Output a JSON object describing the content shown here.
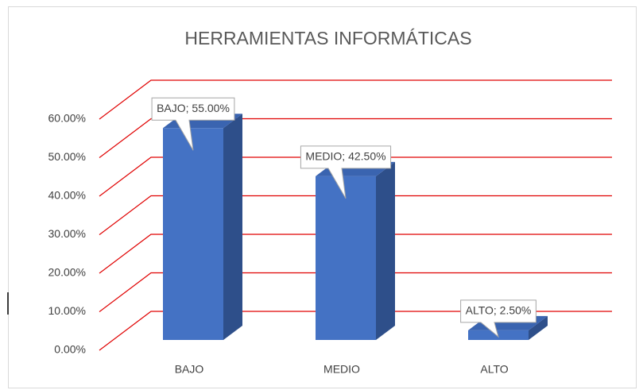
{
  "chart_data": {
    "type": "bar3d",
    "title": "HERRAMIENTAS INFORMÁTICAS",
    "categories": [
      "BAJO",
      "MEDIO",
      "ALTO"
    ],
    "values": [
      55,
      42.5,
      2.5
    ],
    "value_labels": [
      "BAJO; 55.00%",
      "MEDIO; 42.50%",
      "ALTO; 2.50%"
    ],
    "color": "#4472c4",
    "grid_color": "#e00000",
    "ylim": [
      0,
      60
    ],
    "yticks": [
      {
        "value": 0,
        "label": "0.00%"
      },
      {
        "value": 10,
        "label": "10.00%"
      },
      {
        "value": 20,
        "label": "20.00%"
      },
      {
        "value": 30,
        "label": "30.00%"
      },
      {
        "value": 40,
        "label": "40.00%"
      },
      {
        "value": 50,
        "label": "50.00%"
      },
      {
        "value": 60,
        "label": "60.00%"
      }
    ],
    "grid": true
  }
}
